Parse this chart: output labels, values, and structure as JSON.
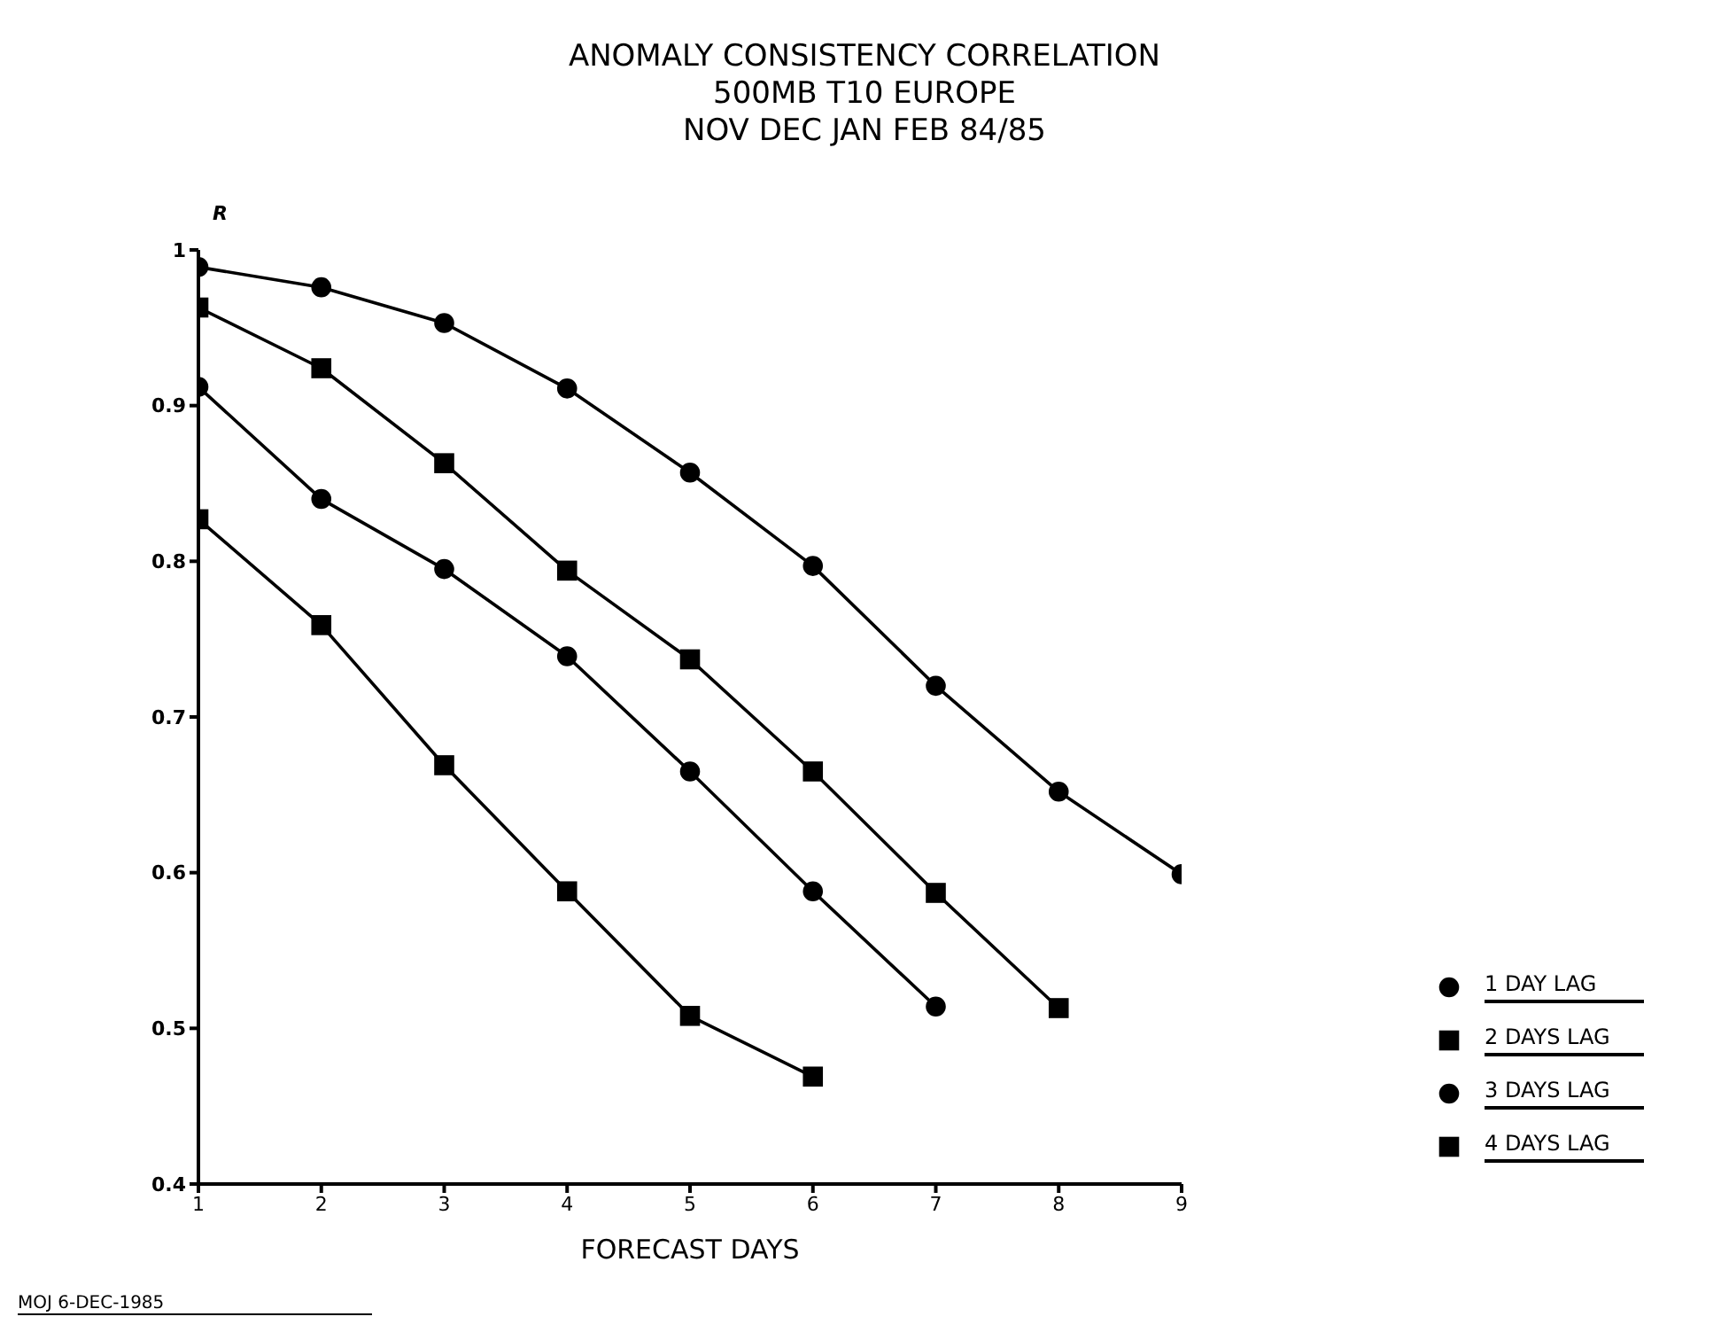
{
  "chart_data": {
    "type": "line",
    "title": "ANOMALY CONSISTENCY CORRELATION",
    "subtitle": "500MB T10 EUROPE\nNOV DEC JAN FEB 84/85",
    "xlabel": "FORECAST DAYS",
    "ylabel": "R",
    "x": [
      1,
      2,
      3,
      4,
      5,
      6,
      7,
      8,
      9
    ],
    "series": [
      {
        "name": "1 DAY LAG",
        "color": "#000000",
        "marker": "circle",
        "values": [
          0.989,
          0.976,
          0.953,
          0.911,
          0.857,
          0.797,
          0.72,
          0.652,
          0.599
        ]
      },
      {
        "name": "2 DAYS LAG",
        "color": "#000000",
        "marker": "square",
        "values": [
          0.963,
          0.924,
          0.863,
          0.794,
          0.737,
          0.665,
          0.587,
          0.513,
          null
        ]
      },
      {
        "name": "3 DAYS LAG",
        "color": "#000000",
        "marker": "circle",
        "values": [
          0.912,
          0.84,
          0.795,
          0.739,
          0.665,
          0.588,
          0.514,
          null,
          null
        ]
      },
      {
        "name": "4 DAYS LAG",
        "color": "#000000",
        "marker": "square",
        "values": [
          0.827,
          0.759,
          0.669,
          0.588,
          0.508,
          0.469,
          null,
          null,
          null
        ]
      }
    ],
    "xlim": [
      1,
      9
    ],
    "xticks": [
      1,
      2,
      3,
      4,
      5,
      6,
      7,
      8,
      9
    ],
    "ylim": [
      0.4,
      1
    ],
    "yticks": [
      0.4,
      0.5,
      0.6,
      0.7,
      0.8,
      0.9,
      {
        "value": 1,
        "label": "1"
      }
    ],
    "grid": false,
    "legend": "bottom right",
    "line_style": "solid",
    "annotations": [
      "MOJ 6-DEC-1985"
    ]
  }
}
